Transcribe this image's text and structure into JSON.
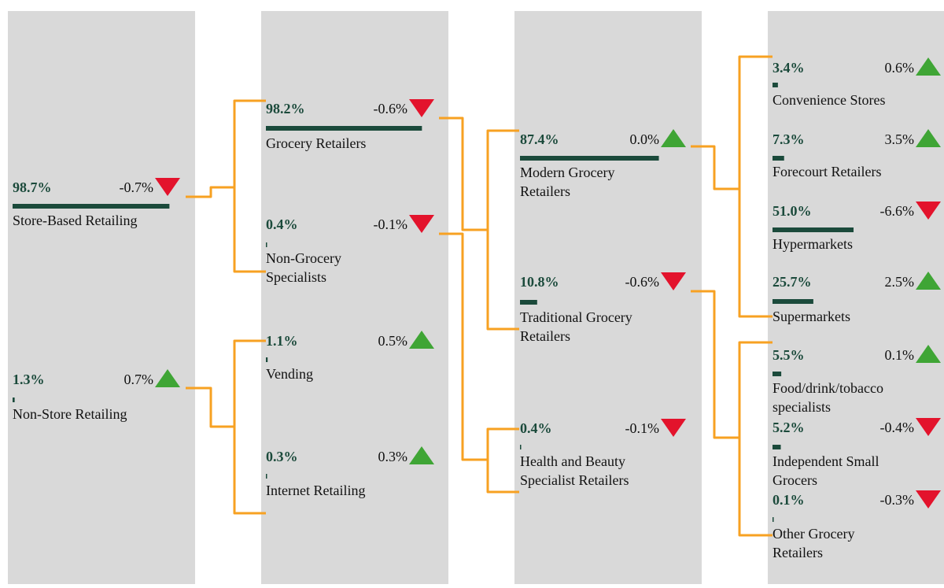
{
  "nodes": [
    {
      "label": [
        "Store-Based Retailing"
      ],
      "share": 98.7,
      "share_label": "98.7%",
      "change": -0.7,
      "change_label": "-0.7%"
    },
    {
      "label": [
        "Non-Store Retailing"
      ],
      "share": 1.3,
      "share_label": "1.3%",
      "change": 0.7,
      "change_label": "0.7%"
    },
    {
      "label": [
        "Grocery Retailers"
      ],
      "share": 98.2,
      "share_label": "98.2%",
      "change": -0.6,
      "change_label": "-0.6%"
    },
    {
      "label": [
        "Non-Grocery",
        "Specialists"
      ],
      "share": 0.4,
      "share_label": "0.4%",
      "change": -0.1,
      "change_label": "-0.1%"
    },
    {
      "label": [
        "Vending"
      ],
      "share": 1.1,
      "share_label": "1.1%",
      "change": 0.5,
      "change_label": "0.5%"
    },
    {
      "label": [
        "Internet Retailing"
      ],
      "share": 0.3,
      "share_label": "0.3%",
      "change": 0.3,
      "change_label": "0.3%"
    },
    {
      "label": [
        "Modern Grocery",
        "Retailers"
      ],
      "share": 87.4,
      "share_label": "87.4%",
      "change": 0.0,
      "change_label": "0.0%"
    },
    {
      "label": [
        "Traditional Grocery",
        "Retailers"
      ],
      "share": 10.8,
      "share_label": "10.8%",
      "change": -0.6,
      "change_label": "-0.6%"
    },
    {
      "label": [
        "Health and Beauty",
        "Specialist Retailers"
      ],
      "share": 0.4,
      "share_label": "0.4%",
      "change": -0.1,
      "change_label": "-0.1%"
    },
    {
      "label": [
        "Convenience Stores"
      ],
      "share": 3.4,
      "share_label": "3.4%",
      "change": 0.6,
      "change_label": "0.6%"
    },
    {
      "label": [
        "Forecourt Retailers"
      ],
      "share": 7.3,
      "share_label": "7.3%",
      "change": 3.5,
      "change_label": "3.5%"
    },
    {
      "label": [
        "Hypermarkets"
      ],
      "share": 51.0,
      "share_label": "51.0%",
      "change": -6.6,
      "change_label": "-6.6%"
    },
    {
      "label": [
        "Supermarkets"
      ],
      "share": 25.7,
      "share_label": "25.7%",
      "change": 2.5,
      "change_label": "2.5%"
    },
    {
      "label": [
        "Food/drink/tobacco",
        "specialists"
      ],
      "share": 5.5,
      "share_label": "5.5%",
      "change": 0.1,
      "change_label": "0.1%"
    },
    {
      "label": [
        "Independent Small",
        "Grocers"
      ],
      "share": 5.2,
      "share_label": "5.2%",
      "change": -0.4,
      "change_label": "-0.4%"
    },
    {
      "label": [
        "Other Grocery",
        "Retailers"
      ],
      "share": 0.1,
      "share_label": "0.1%",
      "change": -0.3,
      "change_label": "-0.3%"
    }
  ]
}
